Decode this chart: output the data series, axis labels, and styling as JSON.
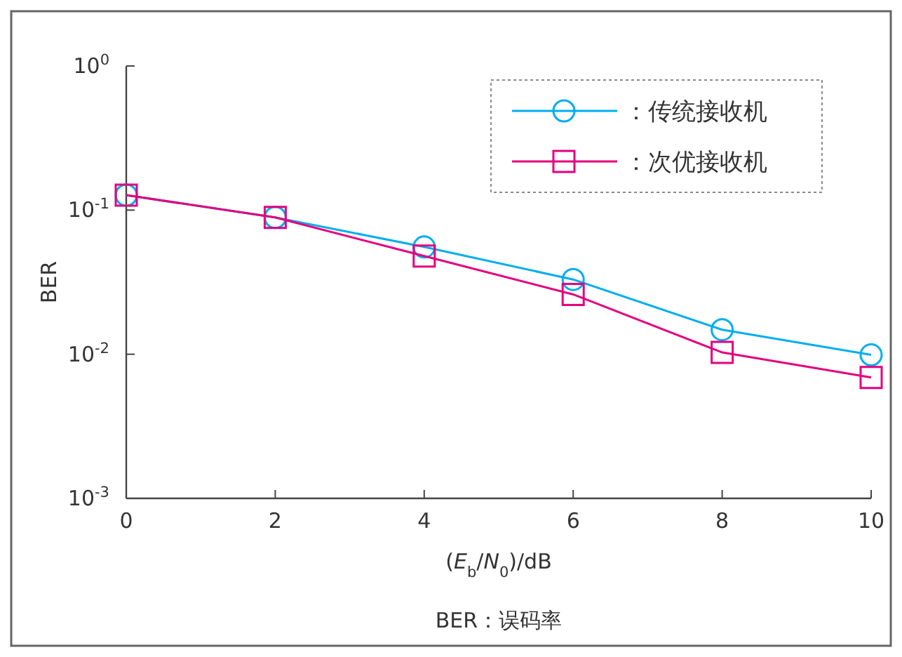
{
  "chart_data": {
    "type": "line",
    "xlabel": "(*E*$_{b}$/*N*$_{0}$)/dB",
    "ylabel": "BER",
    "annotations": [
      "BER：误码率"
    ],
    "log": "y",
    "legend": "top right",
    "x": [
      0,
      2,
      4,
      6,
      8,
      10
    ],
    "xlim": [
      0,
      10
    ],
    "xticks": [
      0,
      2,
      4,
      6,
      8,
      10
    ],
    "ylim": [
      0.001,
      1
    ],
    "yticks": [
      {
        "value": 0.001,
        "label": "10$^{-3}$"
      },
      {
        "value": 0.01,
        "label": "10$^{-2}$"
      },
      {
        "value": 0.1,
        "label": "10$^{-1}$"
      },
      {
        "value": 1,
        "label": "10$^{0}$"
      }
    ],
    "series": [
      {
        "name": "：传统接收机",
        "color": "#00aeef",
        "marker": "circle",
        "values": [
          0.127,
          0.089,
          0.0555,
          0.033,
          0.0148,
          0.0099
        ]
      },
      {
        "name": "：次优接收机",
        "color": "#e4007f",
        "marker": "square",
        "values": [
          0.127,
          0.089,
          0.048,
          0.026,
          0.0103,
          0.0069
        ]
      }
    ]
  }
}
